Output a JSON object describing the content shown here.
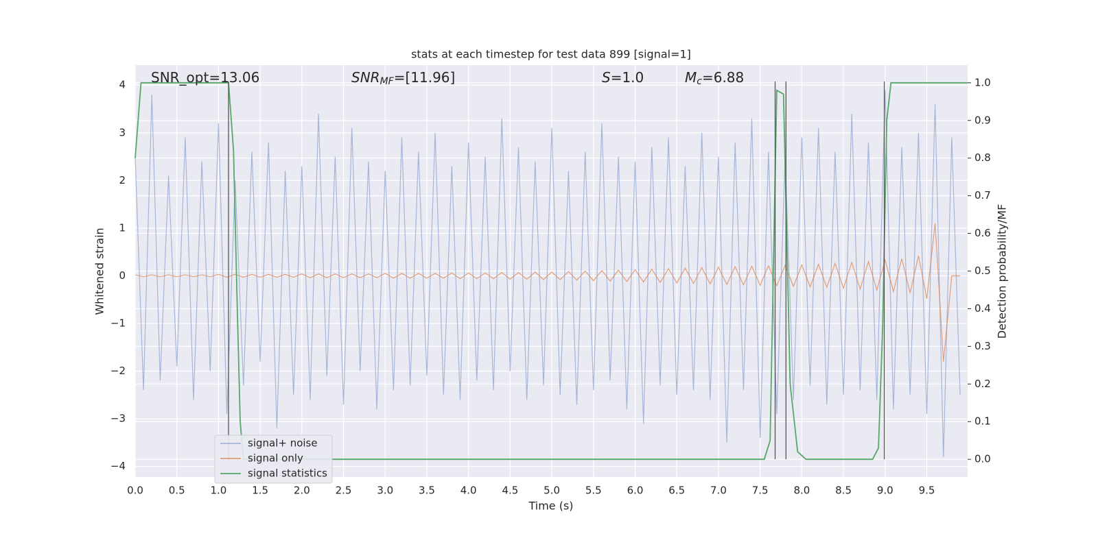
{
  "chart_data": {
    "type": "line",
    "title": "stats at each timestep for test data 899 [signal=1]",
    "xlabel": "Time (s)",
    "ylabel": "Whitened strain",
    "y2label": "Detection probability/MF",
    "annotations": [
      {
        "text": "SNR_opt=13.06"
      },
      {
        "symbol": "SNR",
        "sub": "MF",
        "text": "=[11.96]"
      },
      {
        "symbol": "S",
        "text": "=1.0"
      },
      {
        "symbol": "M",
        "sub": "c",
        "text": "=6.88"
      }
    ],
    "x": [
      0.0,
      0.1,
      0.2,
      0.3,
      0.4,
      0.5,
      0.6,
      0.7,
      0.8,
      0.9,
      1.0,
      1.1,
      1.2,
      1.3,
      1.4,
      1.5,
      1.6,
      1.7,
      1.8,
      1.9,
      2.0,
      2.1,
      2.2,
      2.3,
      2.4,
      2.5,
      2.6,
      2.7,
      2.8,
      2.9,
      3.0,
      3.1,
      3.2,
      3.3,
      3.4,
      3.5,
      3.6,
      3.7,
      3.8,
      3.9,
      4.0,
      4.1,
      4.2,
      4.3,
      4.4,
      4.5,
      4.6,
      4.7,
      4.8,
      4.9,
      5.0,
      5.1,
      5.2,
      5.3,
      5.4,
      5.5,
      5.6,
      5.7,
      5.8,
      5.9,
      6.0,
      6.1,
      6.2,
      6.3,
      6.4,
      6.5,
      6.6,
      6.7,
      6.8,
      6.9,
      7.0,
      7.1,
      7.2,
      7.3,
      7.4,
      7.5,
      7.6,
      7.7,
      7.8,
      7.9,
      8.0,
      8.1,
      8.2,
      8.3,
      8.4,
      8.5,
      8.6,
      8.7,
      8.8,
      8.9,
      9.0,
      9.1,
      9.2,
      9.3,
      9.4,
      9.5,
      9.6,
      9.7,
      9.8,
      9.9
    ],
    "series": [
      {
        "name": "signal+ noise",
        "color": "#8fa3cf",
        "values": [
          2.5,
          -2.4,
          3.8,
          -2.2,
          2.1,
          -1.9,
          2.9,
          -2.6,
          2.4,
          -2.0,
          3.2,
          -2.9,
          2.0,
          -2.3,
          2.6,
          -1.8,
          2.8,
          -3.2,
          2.2,
          -2.5,
          2.3,
          -2.6,
          3.4,
          -2.1,
          2.5,
          -2.7,
          3.1,
          -2.0,
          2.4,
          -2.8,
          2.2,
          -2.4,
          2.9,
          -2.3,
          2.6,
          -2.1,
          3.0,
          -2.5,
          2.3,
          -2.6,
          2.8,
          -2.2,
          2.5,
          -2.4,
          3.3,
          -2.0,
          2.7,
          -2.6,
          2.4,
          -2.3,
          3.1,
          -2.5,
          2.2,
          -2.7,
          2.6,
          -2.4,
          3.2,
          -2.2,
          2.5,
          -2.8,
          2.4,
          -3.1,
          2.7,
          -2.3,
          2.9,
          -2.5,
          2.3,
          -2.4,
          3.0,
          -2.6,
          2.5,
          -3.5,
          2.8,
          -2.4,
          3.3,
          -3.4,
          2.6,
          -2.9,
          2.5,
          -2.6,
          2.9,
          -2.3,
          3.1,
          -2.7,
          2.6,
          -2.5,
          3.4,
          -2.4,
          2.8,
          -2.6,
          3.9,
          -2.8,
          2.7,
          -2.5,
          3.0,
          -2.9,
          3.6,
          -3.8,
          2.9,
          -2.5
        ]
      },
      {
        "name": "signal only",
        "color": "#dd8452",
        "values": [
          0.02,
          -0.02,
          0.02,
          -0.02,
          0.02,
          -0.02,
          0.02,
          -0.02,
          0.02,
          -0.02,
          0.03,
          -0.03,
          0.03,
          -0.03,
          0.03,
          -0.03,
          0.03,
          -0.03,
          0.03,
          -0.03,
          0.04,
          -0.04,
          0.04,
          -0.04,
          0.04,
          -0.04,
          0.04,
          -0.04,
          0.04,
          -0.04,
          0.05,
          -0.05,
          0.05,
          -0.05,
          0.05,
          -0.05,
          0.05,
          -0.05,
          0.06,
          -0.06,
          0.06,
          -0.06,
          0.06,
          -0.06,
          0.07,
          -0.07,
          0.07,
          -0.07,
          0.08,
          -0.08,
          0.08,
          -0.08,
          0.09,
          -0.09,
          0.1,
          -0.1,
          0.11,
          -0.11,
          0.12,
          -0.12,
          0.13,
          -0.13,
          0.14,
          -0.14,
          0.15,
          -0.15,
          0.16,
          -0.16,
          0.17,
          -0.17,
          0.18,
          -0.18,
          0.19,
          -0.19,
          0.2,
          -0.2,
          0.21,
          -0.21,
          0.22,
          -0.22,
          0.23,
          -0.23,
          0.24,
          -0.24,
          0.26,
          -0.26,
          0.28,
          -0.28,
          0.3,
          -0.3,
          0.33,
          -0.33,
          0.36,
          -0.36,
          0.42,
          -0.48,
          1.1,
          -1.8,
          0.0,
          0.0
        ]
      },
      {
        "name": "signal statistics",
        "color": "#55a868",
        "axis": "y2",
        "x": [
          0.0,
          0.07,
          0.15,
          1.12,
          1.18,
          1.22,
          1.26,
          1.3,
          7.3,
          7.45,
          7.55,
          7.62,
          7.7,
          7.78,
          7.86,
          7.95,
          8.05,
          8.85,
          8.92,
          8.97,
          9.02,
          9.07,
          9.99
        ],
        "values": [
          0.8,
          1.0,
          1.0,
          1.0,
          0.82,
          0.45,
          0.1,
          0.0,
          0.0,
          0.0,
          0.0,
          0.05,
          0.98,
          0.97,
          0.2,
          0.02,
          0.0,
          0.0,
          0.03,
          0.35,
          0.9,
          1.0,
          1.0
        ]
      }
    ],
    "vlines": [
      1.12,
      7.68,
      7.81,
      8.99
    ],
    "xlim": [
      0,
      9.99
    ],
    "xticks": [
      {
        "value": 0,
        "label": "0.0"
      },
      {
        "value": 0.5,
        "label": "0.5"
      },
      {
        "value": 1,
        "label": "1.0"
      },
      {
        "value": 1.5,
        "label": "1.5"
      },
      {
        "value": 2,
        "label": "2.0"
      },
      {
        "value": 2.5,
        "label": "2.5"
      },
      {
        "value": 3,
        "label": "3.0"
      },
      {
        "value": 3.5,
        "label": "3.5"
      },
      {
        "value": 4,
        "label": "4.0"
      },
      {
        "value": 4.5,
        "label": "4.5"
      },
      {
        "value": 5,
        "label": "5.0"
      },
      {
        "value": 5.5,
        "label": "5.5"
      },
      {
        "value": 6,
        "label": "6.0"
      },
      {
        "value": 6.5,
        "label": "6.5"
      },
      {
        "value": 7,
        "label": "7.0"
      },
      {
        "value": 7.5,
        "label": "7.5"
      },
      {
        "value": 8,
        "label": "8.0"
      },
      {
        "value": 8.5,
        "label": "8.5"
      },
      {
        "value": 9,
        "label": "9.0"
      },
      {
        "value": 9.5,
        "label": "9.5"
      }
    ],
    "ylim": [
      -4.22,
      4.42
    ],
    "yticks": [
      {
        "value": -4,
        "label": "−4"
      },
      {
        "value": -3,
        "label": "−3"
      },
      {
        "value": -2,
        "label": "−2"
      },
      {
        "value": -1,
        "label": "−1"
      },
      0,
      1,
      2,
      3,
      4
    ],
    "y2lim": [
      -0.047,
      1.047
    ],
    "y2ticks": [
      {
        "value": 0,
        "label": "0.0"
      },
      {
        "value": 0.1,
        "label": "0.1"
      },
      {
        "value": 0.2,
        "label": "0.2"
      },
      {
        "value": 0.3,
        "label": "0.3"
      },
      {
        "value": 0.4,
        "label": "0.4"
      },
      {
        "value": 0.5,
        "label": "0.5"
      },
      {
        "value": 0.6,
        "label": "0.6"
      },
      {
        "value": 0.7,
        "label": "0.7"
      },
      {
        "value": 0.8,
        "label": "0.8"
      },
      {
        "value": 0.9,
        "label": "0.9"
      },
      {
        "value": 1,
        "label": "1.0"
      }
    ],
    "grid": true,
    "legend": "lower left"
  }
}
